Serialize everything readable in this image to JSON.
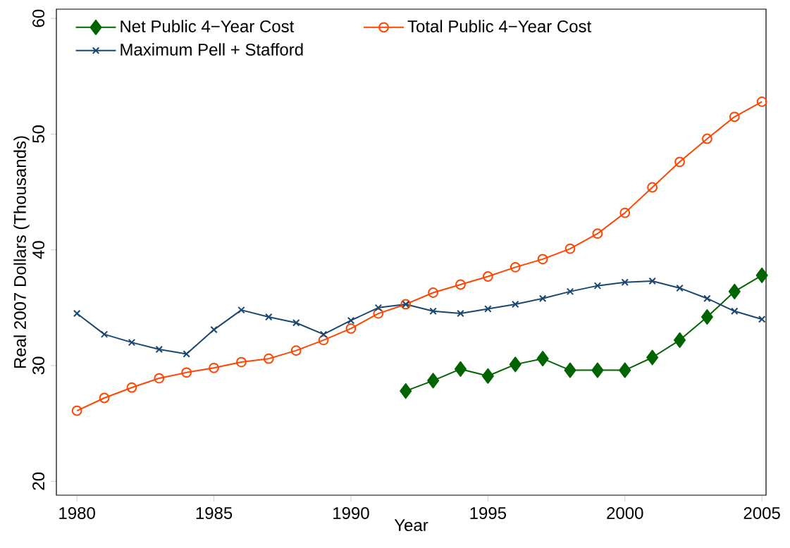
{
  "chart_data": {
    "type": "line",
    "xlabel": "Year",
    "ylabel": "Real 2007 Dollars (Thousands)",
    "x": [
      1980,
      1981,
      1982,
      1983,
      1984,
      1985,
      1986,
      1987,
      1988,
      1989,
      1990,
      1991,
      1992,
      1993,
      1994,
      1995,
      1996,
      1997,
      1998,
      1999,
      2000,
      2001,
      2002,
      2003,
      2004,
      2005
    ],
    "series": [
      {
        "name": "Net Public 4−Year Cost",
        "color": "#006400",
        "marker": "diamond",
        "x": [
          1992,
          1993,
          1994,
          1995,
          1996,
          1997,
          1998,
          1999,
          2000,
          2001,
          2002,
          2003,
          2004,
          2005
        ],
        "values": [
          27.8,
          28.7,
          29.7,
          29.1,
          30.1,
          30.6,
          29.6,
          29.6,
          29.6,
          30.7,
          32.2,
          34.2,
          36.4,
          37.8
        ]
      },
      {
        "name": "Total Public 4−Year Cost",
        "color": "#ff4500",
        "marker": "circle",
        "values": [
          26.1,
          27.2,
          28.1,
          28.9,
          29.4,
          29.8,
          30.3,
          30.6,
          31.3,
          32.2,
          33.2,
          34.5,
          35.3,
          36.3,
          37.0,
          37.7,
          38.5,
          39.2,
          40.1,
          41.4,
          43.2,
          45.4,
          47.6,
          49.6,
          51.5,
          52.8
        ]
      },
      {
        "name": "Maximum Pell + Stafford",
        "color": "#1a476f",
        "marker": "cross",
        "values": [
          34.5,
          32.7,
          32.0,
          31.4,
          31.0,
          33.1,
          34.8,
          34.2,
          33.7,
          32.7,
          33.9,
          35.0,
          35.3,
          34.7,
          34.5,
          34.9,
          35.3,
          35.8,
          36.4,
          36.9,
          37.2,
          37.3,
          36.7,
          35.8,
          34.7,
          34.0
        ]
      }
    ],
    "xlim": [
      1979.25,
      2005.15
    ],
    "ylim": [
      18.8,
      60.8
    ],
    "xticks": [
      1980,
      1985,
      1990,
      1995,
      2000,
      2005
    ],
    "yticks": [
      20,
      30,
      40,
      50,
      60
    ],
    "legend": "top left",
    "grid": false
  }
}
